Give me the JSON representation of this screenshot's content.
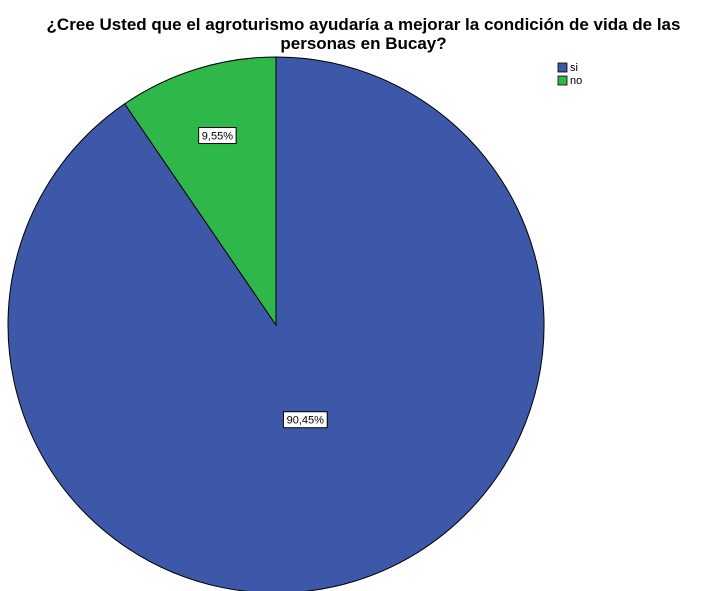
{
  "chart_data": {
    "type": "pie",
    "title_lines": [
      "¿Cree Usted que el agroturismo ayudaría a mejorar la condición de vida de las",
      "personas en Bucay?"
    ],
    "categories": [
      "si",
      "no"
    ],
    "values": [
      90.45,
      9.55
    ],
    "data_labels": [
      "90,45%",
      "9,55%"
    ],
    "colors": [
      "#3e58a9",
      "#2fb84a"
    ],
    "legend_position": "top-right"
  }
}
